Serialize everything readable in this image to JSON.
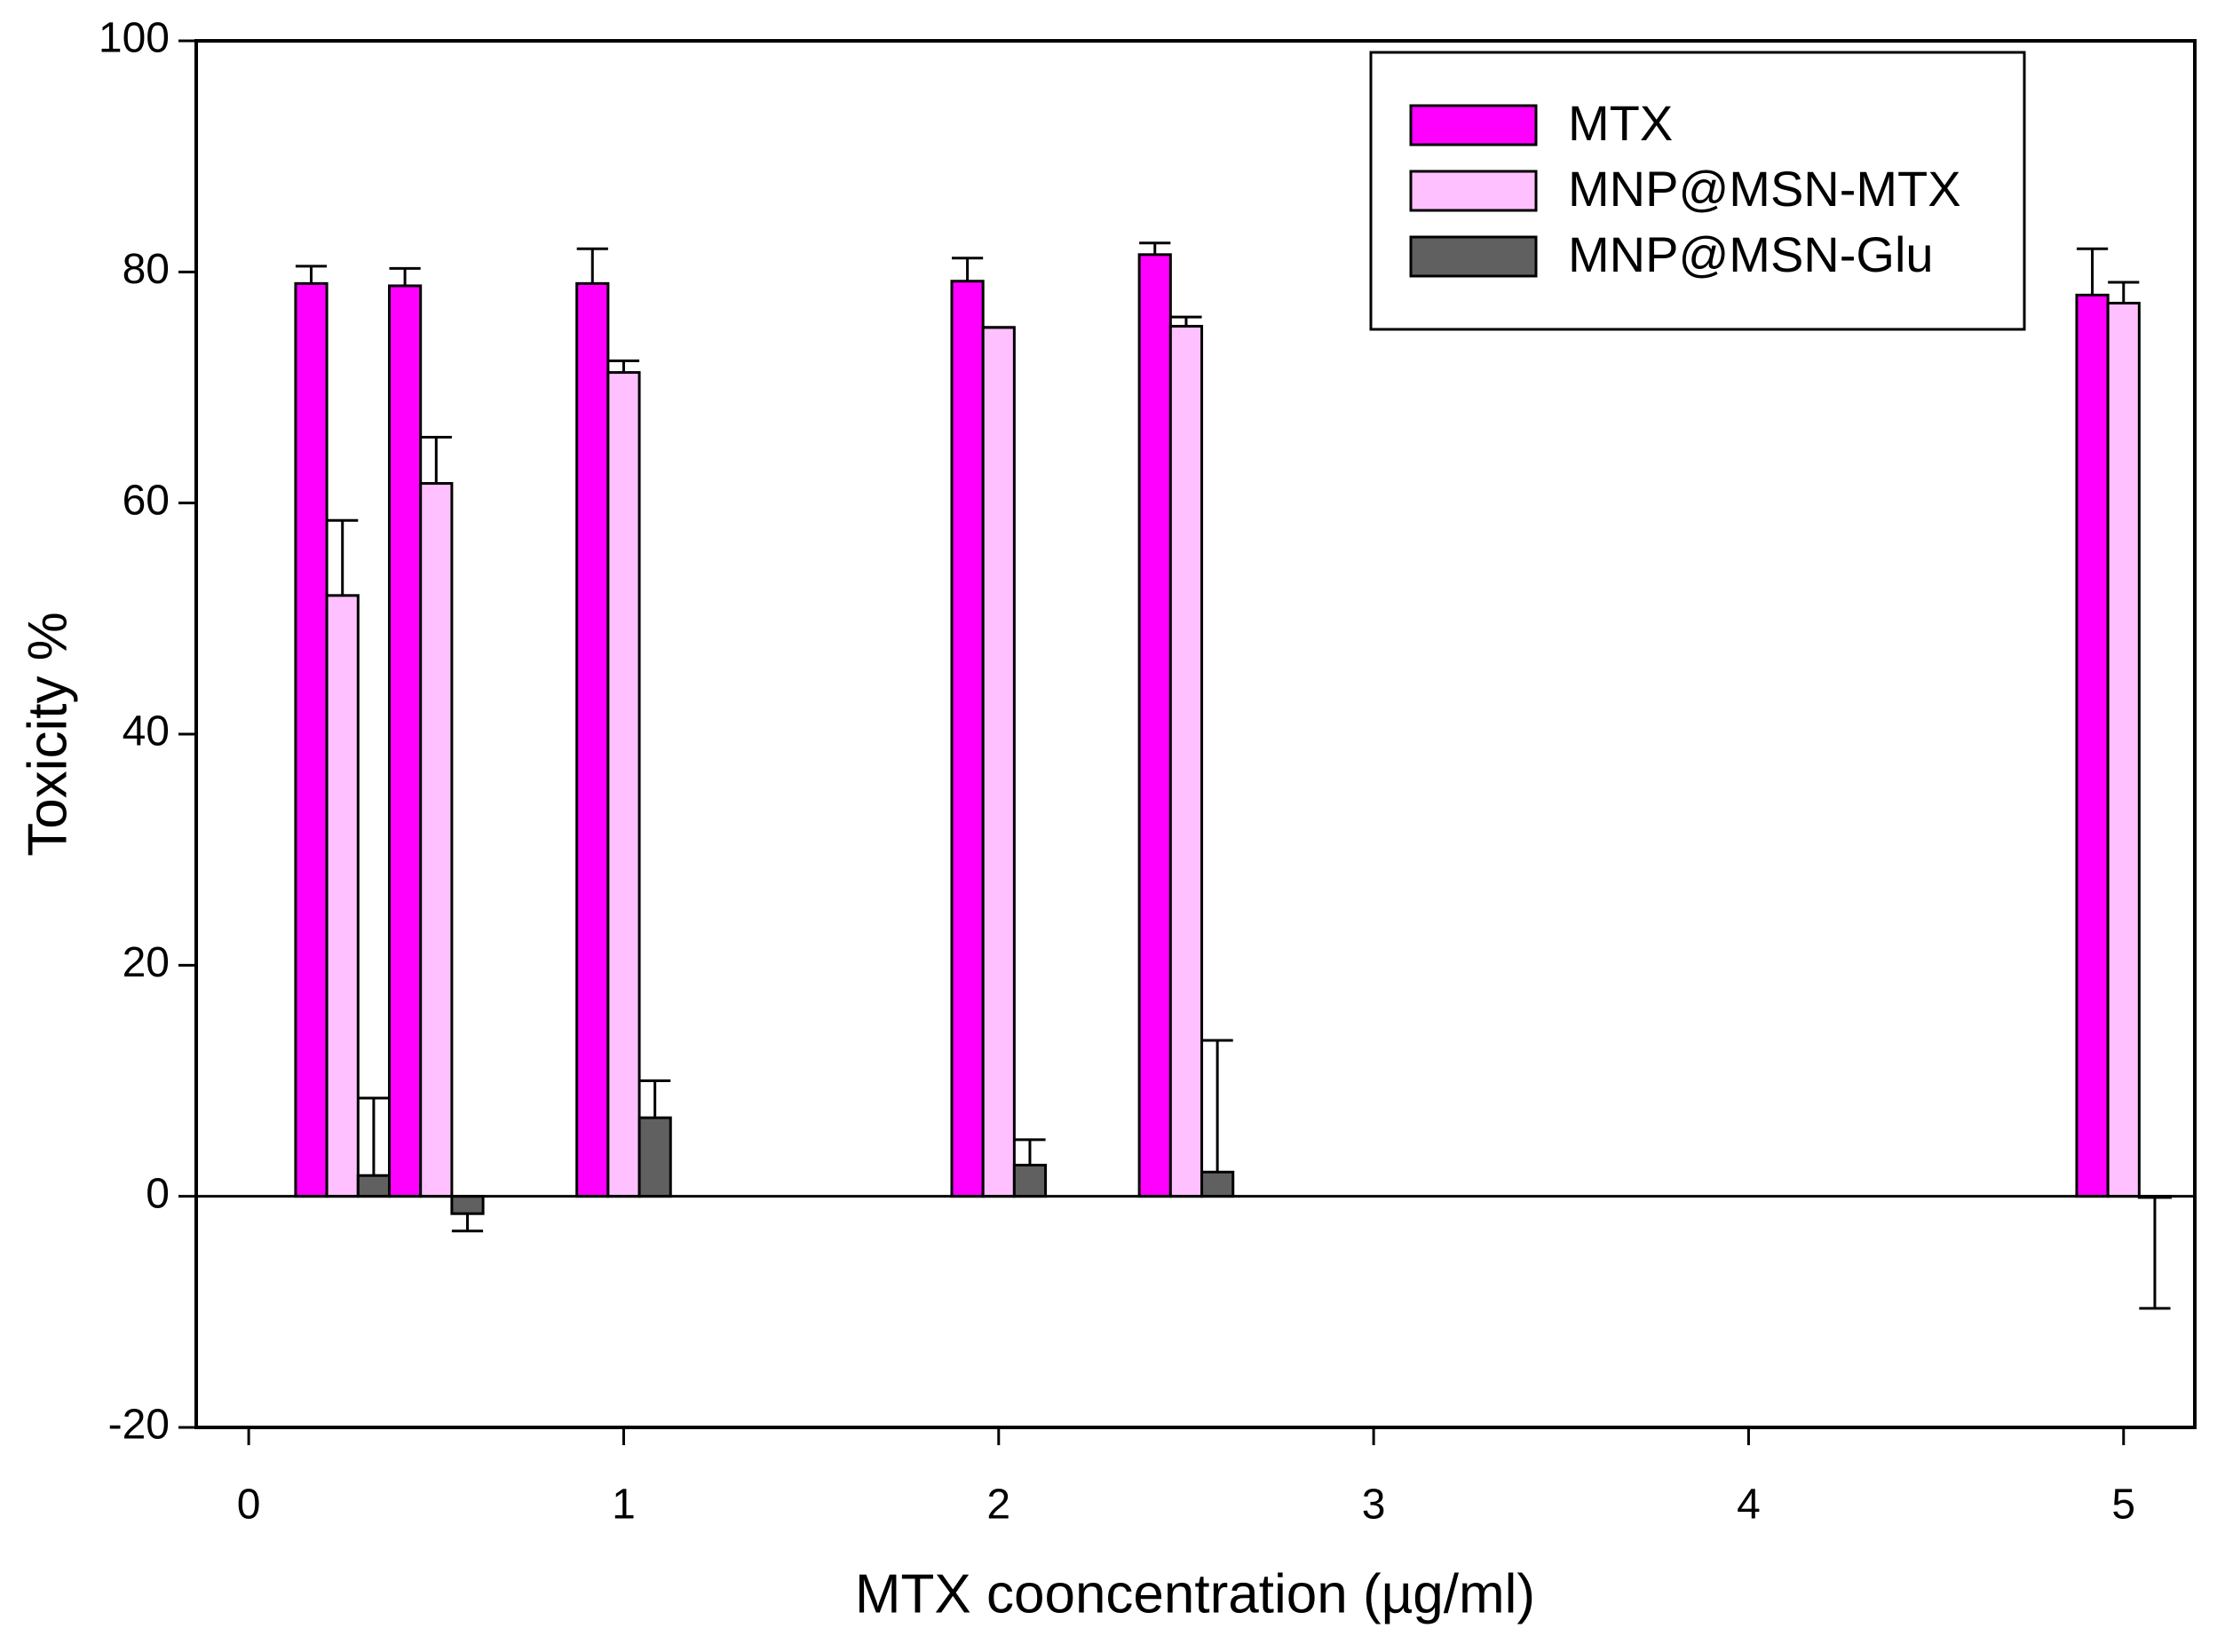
{
  "chart_data": {
    "type": "bar",
    "x_label": "MTX cooncentration (µg/ml)",
    "y_label": "Toxicity %",
    "x": [
      0.25,
      0.5,
      1,
      2,
      2.5,
      5
    ],
    "series": [
      {
        "name": "MTX",
        "color": "#ff00ff",
        "values": [
          79,
          78.8,
          79,
          79.2,
          81.5,
          78
        ],
        "errors": [
          1.5,
          1.5,
          3,
          2,
          1,
          4
        ]
      },
      {
        "name": "MNP@MSN-MTX",
        "color": "#ffc0ff",
        "values": [
          52,
          61.7,
          71.3,
          75.2,
          75.3,
          77.3
        ],
        "errors": [
          6.5,
          4,
          1,
          0,
          0.8,
          1.8
        ]
      },
      {
        "name": "MNP@MSN-Glu",
        "color": "#606060",
        "values": [
          1.8,
          -1.5,
          6.8,
          2.7,
          2.1,
          -0.1
        ],
        "errors": [
          6.7,
          1.5,
          3.2,
          2.2,
          11.4,
          9.6
        ]
      }
    ],
    "xlim": [
      -0.14,
      5.19
    ],
    "xticks": [
      0,
      1,
      2,
      3,
      4,
      5
    ],
    "ylim": [
      -20,
      100
    ],
    "yticks": [
      -20,
      0,
      20,
      40,
      60,
      80,
      100
    ],
    "grid": false,
    "legend": "upper right"
  }
}
